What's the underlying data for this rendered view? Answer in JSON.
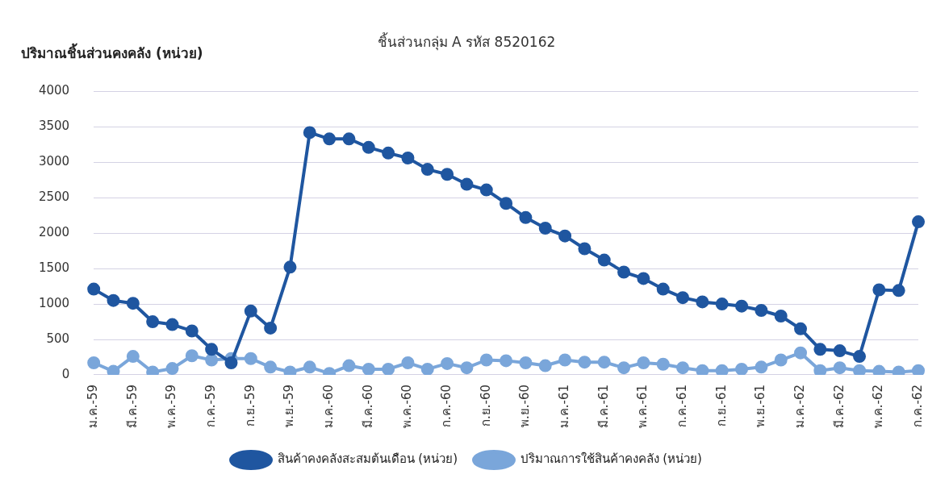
{
  "chart_data": {
    "type": "line",
    "title": "ชิ้นส่วนกลุ่ม A รหัส 8520162",
    "ylabel": "ปริมาณชิ้นส่วนคงคลัง (หน่วย)",
    "categories": [
      "ม.ค.-59",
      null,
      "มี.ค.-59",
      null,
      "พ.ค.-59",
      null,
      "ก.ค.-59",
      null,
      "ก.ย.-59",
      null,
      "พ.ย.-59",
      null,
      "ม.ค.-60",
      null,
      "มี.ค.-60",
      null,
      "พ.ค.-60",
      null,
      "ก.ค.-60",
      null,
      "ก.ย.-60",
      null,
      "พ.ย.-60",
      null,
      "ม.ค.-61",
      null,
      "มี.ค.-61",
      null,
      "พ.ค.-61",
      null,
      "ก.ค.-61",
      null,
      "ก.ย.-61",
      null,
      "พ.ย.-61",
      null,
      "ม.ค.-62",
      null,
      "มี.ค.-62",
      null,
      "พ.ค.-62",
      null,
      "ก.ค.-62"
    ],
    "series": [
      {
        "name": "ปริมาณการใช้สินค้าคงคลัง (หน่วย)",
        "color": "#7aa6da",
        "values": [
          170,
          50,
          260,
          40,
          90,
          270,
          210,
          230,
          230,
          110,
          40,
          110,
          20,
          130,
          80,
          80,
          170,
          80,
          160,
          100,
          210,
          200,
          170,
          130,
          210,
          180,
          180,
          100,
          170,
          150,
          100,
          60,
          60,
          80,
          110,
          210,
          310,
          60,
          100,
          60,
          50,
          40,
          60
        ]
      },
      {
        "name": "สินค้าคงคลังสะสมต้นเดือน (หน่วย)",
        "color": "#1f56a0",
        "values": [
          1210,
          1050,
          1010,
          750,
          710,
          620,
          360,
          170,
          900,
          660,
          1520,
          3420,
          3330,
          3330,
          3210,
          3130,
          3060,
          2900,
          2830,
          2690,
          2610,
          2420,
          2220,
          2070,
          1960,
          1780,
          1620,
          1450,
          1360,
          1210,
          1090,
          1030,
          1000,
          970,
          910,
          830,
          650,
          360,
          340,
          260,
          1200,
          1190,
          2160
        ]
      }
    ],
    "ylim": [
      0,
      4000
    ],
    "yticks": [
      0,
      500,
      1000,
      1500,
      2000,
      2500,
      3000,
      3500,
      4000
    ],
    "grid": "y",
    "legend": "bottom",
    "marker": "circle",
    "line_style": "solid"
  }
}
